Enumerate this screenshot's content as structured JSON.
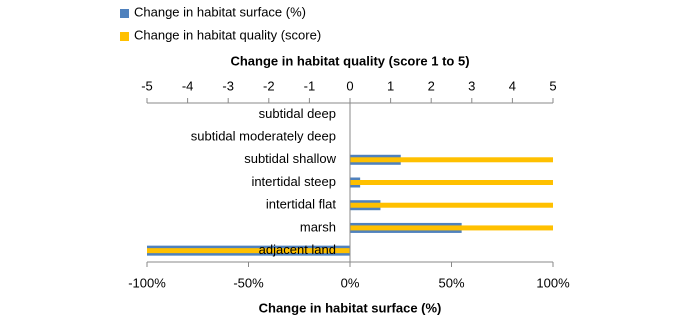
{
  "chart_data": {
    "type": "hbar",
    "x_label": "Change in habitat surface (%)",
    "x2_label": "Change in habitat quality (score 1 to 5)",
    "categories": [
      "subtidal deep",
      "subtidal moderately deep",
      "subtidal shallow",
      "intertidal steep",
      "intertidal flat",
      "marsh",
      "adjacent land"
    ],
    "series": [
      {
        "name": "Change in habitat surface (%)",
        "color": "#4f81bd",
        "values": [
          0,
          0,
          25,
          5,
          15,
          55,
          -100
        ]
      },
      {
        "name": "Change in habitat quality (score)",
        "color": "#ffc000",
        "axis": "x2",
        "values": [
          0,
          0,
          5,
          5,
          5,
          5,
          -5
        ]
      }
    ],
    "xlim": [
      -100,
      100
    ],
    "xticks": [
      {
        "value": -100,
        "label": "-100%"
      },
      {
        "value": -50,
        "label": "-50%"
      },
      {
        "value": 0,
        "label": "0%"
      },
      {
        "value": 50,
        "label": "50%"
      },
      {
        "value": 100,
        "label": "100%"
      }
    ],
    "x2lim": [
      -5,
      5
    ],
    "x2ticks": [
      -5,
      -4,
      -3,
      -2,
      -1,
      0,
      1,
      2,
      3,
      4,
      5
    ],
    "legend": "top-left"
  }
}
